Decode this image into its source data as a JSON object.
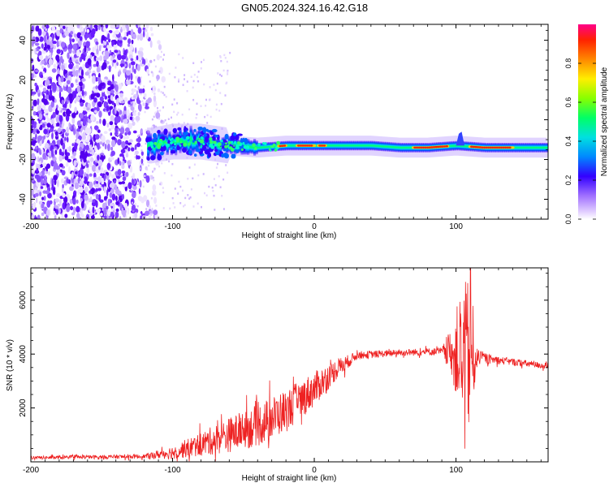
{
  "title": "GN05.2024.324.16.42.G18",
  "chart_data": [
    {
      "type": "heatmap",
      "title": "GN05.2024.324.16.42.G18",
      "xlabel": "Height of straight line (km)",
      "ylabel": "Frequency (Hz)",
      "xlim": [
        -200,
        165
      ],
      "ylim": [
        -50,
        48
      ],
      "xticks": [
        "-200",
        "-100",
        "0",
        "100"
      ],
      "yticks": [
        "40",
        "20",
        "0",
        "-20",
        "-40"
      ],
      "colorbar": {
        "label": "Normalized spectral amplitude",
        "range": [
          0,
          1
        ],
        "ticks": [
          "0.0",
          "0.2",
          "0.4",
          "0.6",
          "0.8"
        ]
      },
      "ridge_center_hz": [
        {
          "x": -115,
          "y": -13
        },
        {
          "x": -100,
          "y": -11
        },
        {
          "x": -90,
          "y": -11
        },
        {
          "x": -80,
          "y": -11
        },
        {
          "x": -60,
          "y": -13
        },
        {
          "x": -40,
          "y": -14
        },
        {
          "x": -20,
          "y": -13
        },
        {
          "x": 0,
          "y": -13
        },
        {
          "x": 20,
          "y": -13
        },
        {
          "x": 40,
          "y": -13
        },
        {
          "x": 60,
          "y": -14
        },
        {
          "x": 80,
          "y": -14
        },
        {
          "x": 100,
          "y": -13
        },
        {
          "x": 120,
          "y": -14
        },
        {
          "x": 165,
          "y": -14
        }
      ],
      "peak_segments_km": [
        [
          -25,
          -20
        ],
        [
          -12,
          0
        ],
        [
          3,
          8
        ],
        [
          70,
          95
        ],
        [
          110,
          140
        ]
      ],
      "scatter_noise_region_km": [
        -200,
        -115
      ]
    },
    {
      "type": "line",
      "xlabel": "Height of straight line (km)",
      "ylabel": "SNR (10 * v/v)",
      "xlim": [
        -200,
        165
      ],
      "ylim": [
        0,
        7200
      ],
      "xticks": [
        "-200",
        "-100",
        "0",
        "100"
      ],
      "yticks": [
        "2000",
        "4000",
        "6000"
      ],
      "color": "#ee2222",
      "envelope": [
        {
          "x": -200,
          "y": 150,
          "amp": 60
        },
        {
          "x": -120,
          "y": 200,
          "amp": 80
        },
        {
          "x": -100,
          "y": 350,
          "amp": 250
        },
        {
          "x": -80,
          "y": 650,
          "amp": 450
        },
        {
          "x": -60,
          "y": 1000,
          "amp": 650
        },
        {
          "x": -40,
          "y": 1350,
          "amp": 800
        },
        {
          "x": -20,
          "y": 1900,
          "amp": 800
        },
        {
          "x": 0,
          "y": 2700,
          "amp": 650
        },
        {
          "x": 15,
          "y": 3400,
          "amp": 400
        },
        {
          "x": 30,
          "y": 3950,
          "amp": 150
        },
        {
          "x": 60,
          "y": 4050,
          "amp": 120
        },
        {
          "x": 90,
          "y": 4100,
          "amp": 150
        },
        {
          "x": 97,
          "y": 4100,
          "amp": 900
        },
        {
          "x": 104,
          "y": 4000,
          "amp": 2500
        },
        {
          "x": 110,
          "y": 3900,
          "amp": 3000
        },
        {
          "x": 115,
          "y": 3900,
          "amp": 300
        },
        {
          "x": 125,
          "y": 3800,
          "amp": 150
        },
        {
          "x": 165,
          "y": 3550,
          "amp": 120
        }
      ]
    }
  ]
}
